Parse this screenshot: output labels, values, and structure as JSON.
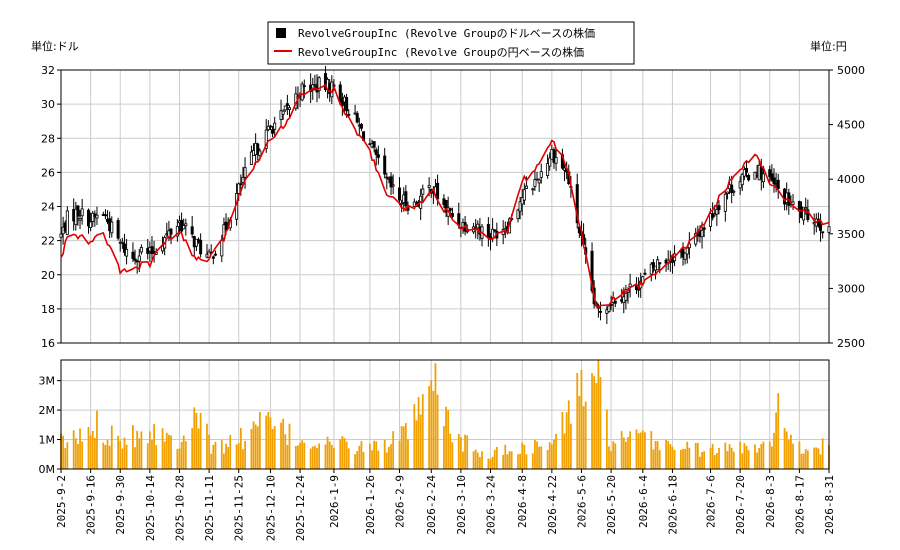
{
  "units": {
    "left": "単位:ドル",
    "right": "単位:円"
  },
  "legend": [
    {
      "label": "RevolveGroupInc (Revolve Groupのドルベースの株価",
      "color": "#000000"
    },
    {
      "label": "RevolveGroupInc (Revolve Groupの円ベースの株価",
      "color": "#e00000"
    }
  ],
  "chart_data": [
    {
      "type": "candlestick",
      "title": "",
      "xlabel": "",
      "ylabel_left": "単位:ドル",
      "ylabel_right": "単位:円",
      "ylim_left": [
        16,
        32
      ],
      "ylim_right": [
        2500,
        5000
      ],
      "yticks_left": [
        16,
        18,
        20,
        22,
        24,
        26,
        28,
        30,
        32
      ],
      "yticks_right": [
        2500,
        3000,
        3500,
        4000,
        4500,
        5000
      ],
      "grid": true,
      "legend_position": "top-center",
      "series": [
        {
          "name": "RevolveGroupInc (Revolve Groupのドルベースの株価",
          "anchors": [
            [
              "2025-09-02",
              22.3
            ],
            [
              "2025-09-05",
              23.3
            ],
            [
              "2025-09-10",
              23.7
            ],
            [
              "2025-09-16",
              23.2
            ],
            [
              "2025-09-22",
              23.6
            ],
            [
              "2025-09-30",
              21.8
            ],
            [
              "2025-10-06",
              21.0
            ],
            [
              "2025-10-10",
              21.4
            ],
            [
              "2025-10-14",
              21.2
            ],
            [
              "2025-10-20",
              22.0
            ],
            [
              "2025-10-28",
              23.1
            ],
            [
              "2025-11-04",
              22.0
            ],
            [
              "2025-11-11",
              20.9
            ],
            [
              "2025-11-18",
              22.5
            ],
            [
              "2025-11-25",
              25.0
            ],
            [
              "2025-12-02",
              27.1
            ],
            [
              "2025-12-10",
              28.6
            ],
            [
              "2025-12-17",
              29.5
            ],
            [
              "2025-12-24",
              30.8
            ],
            [
              "2026-01-02",
              31.1
            ],
            [
              "2026-01-09",
              31.0
            ],
            [
              "2026-01-16",
              29.7
            ],
            [
              "2026-01-26",
              27.6
            ],
            [
              "2026-02-02",
              25.6
            ],
            [
              "2026-02-09",
              24.4
            ],
            [
              "2026-02-16",
              24.1
            ],
            [
              "2026-02-24",
              25.2
            ],
            [
              "2026-03-03",
              23.8
            ],
            [
              "2026-03-10",
              23.0
            ],
            [
              "2026-03-17",
              22.9
            ],
            [
              "2026-03-24",
              22.3
            ],
            [
              "2026-04-01",
              23.0
            ],
            [
              "2026-04-08",
              24.6
            ],
            [
              "2026-04-15",
              25.6
            ],
            [
              "2026-04-22",
              27.2
            ],
            [
              "2026-04-29",
              26.0
            ],
            [
              "2026-05-06",
              22.0
            ],
            [
              "2026-05-13",
              17.8
            ],
            [
              "2026-05-20",
              18.5
            ],
            [
              "2026-05-27",
              19.0
            ],
            [
              "2026-06-04",
              19.7
            ],
            [
              "2026-06-11",
              20.7
            ],
            [
              "2026-06-18",
              21.1
            ],
            [
              "2026-06-25",
              21.4
            ],
            [
              "2026-07-06",
              23.4
            ],
            [
              "2026-07-13",
              24.8
            ],
            [
              "2026-07-20",
              25.6
            ],
            [
              "2026-07-28",
              26.2
            ],
            [
              "2026-08-03",
              25.5
            ],
            [
              "2026-08-10",
              24.5
            ],
            [
              "2026-08-17",
              23.6
            ],
            [
              "2026-08-24",
              23.4
            ],
            [
              "2026-08-31",
              22.4
            ]
          ]
        },
        {
          "name": "RevolveGroupInc (Revolve Groupの円ベースの株価",
          "anchors": [
            [
              "2025-09-02",
              3260
            ],
            [
              "2025-09-05",
              3480
            ],
            [
              "2025-09-10",
              3480
            ],
            [
              "2025-09-16",
              3420
            ],
            [
              "2025-09-22",
              3510
            ],
            [
              "2025-09-30",
              3150
            ],
            [
              "2025-10-06",
              3180
            ],
            [
              "2025-10-10",
              3210
            ],
            [
              "2025-10-14",
              3230
            ],
            [
              "2025-10-20",
              3400
            ],
            [
              "2025-10-28",
              3520
            ],
            [
              "2025-11-04",
              3280
            ],
            [
              "2025-11-11",
              3260
            ],
            [
              "2025-11-18",
              3450
            ],
            [
              "2025-11-25",
              3860
            ],
            [
              "2025-12-02",
              4120
            ],
            [
              "2025-12-10",
              4380
            ],
            [
              "2025-12-17",
              4510
            ],
            [
              "2025-12-24",
              4760
            ],
            [
              "2026-01-02",
              4860
            ],
            [
              "2026-01-09",
              4820
            ],
            [
              "2026-01-16",
              4550
            ],
            [
              "2026-01-26",
              4250
            ],
            [
              "2026-02-02",
              3890
            ],
            [
              "2026-02-09",
              3760
            ],
            [
              "2026-02-16",
              3720
            ],
            [
              "2026-02-24",
              3910
            ],
            [
              "2026-03-03",
              3700
            ],
            [
              "2026-03-10",
              3560
            ],
            [
              "2026-03-17",
              3540
            ],
            [
              "2026-03-24",
              3470
            ],
            [
              "2026-04-01",
              3520
            ],
            [
              "2026-04-08",
              3980
            ],
            [
              "2026-04-15",
              4110
            ],
            [
              "2026-04-22",
              4350
            ],
            [
              "2026-04-29",
              4130
            ],
            [
              "2026-05-06",
              3500
            ],
            [
              "2026-05-13",
              2850
            ],
            [
              "2026-05-20",
              2880
            ],
            [
              "2026-05-27",
              2980
            ],
            [
              "2026-06-04",
              3040
            ],
            [
              "2026-06-11",
              3170
            ],
            [
              "2026-06-18",
              3280
            ],
            [
              "2026-06-25",
              3390
            ],
            [
              "2026-07-06",
              3690
            ],
            [
              "2026-07-13",
              3920
            ],
            [
              "2026-07-20",
              4090
            ],
            [
              "2026-07-28",
              4220
            ],
            [
              "2026-08-03",
              3960
            ],
            [
              "2026-08-10",
              3820
            ],
            [
              "2026-08-17",
              3730
            ],
            [
              "2026-08-24",
              3640
            ],
            [
              "2026-08-31",
              3580
            ]
          ]
        }
      ]
    },
    {
      "type": "bar",
      "title": "",
      "ylim": [
        0,
        3700000
      ],
      "yticks": [
        0,
        1000000,
        2000000,
        3000000
      ],
      "ytick_labels": [
        "0M",
        "1M",
        "2M",
        "3M"
      ],
      "xlim": [
        "2025-09-02",
        "2026-08-31"
      ],
      "xticks": [
        "2025-9-2",
        "2025-9-16",
        "2025-9-30",
        "2025-10-14",
        "2025-10-28",
        "2025-11-11",
        "2025-11-25",
        "2025-12-10",
        "2025-12-24",
        "2026-1-9",
        "2026-1-26",
        "2026-2-9",
        "2026-2-24",
        "2026-3-10",
        "2026-3-24",
        "2026-4-8",
        "2026-4-22",
        "2026-5-6",
        "2026-5-20",
        "2026-6-4",
        "2026-6-18",
        "2026-7-6",
        "2026-7-20",
        "2026-8-3",
        "2026-8-17",
        "2026-8-31"
      ],
      "bar_color": "#f0a000",
      "grid": true,
      "volume_anchors": [
        [
          "2025-09-02",
          1000000
        ],
        [
          "2025-09-12",
          1200000
        ],
        [
          "2025-09-18",
          1650000
        ],
        [
          "2025-10-01",
          1200000
        ],
        [
          "2025-10-15",
          1500000
        ],
        [
          "2025-10-27",
          1000000
        ],
        [
          "2025-11-05",
          2350000
        ],
        [
          "2025-11-12",
          800000
        ],
        [
          "2025-11-25",
          1100000
        ],
        [
          "2025-12-08",
          1800000
        ],
        [
          "2025-12-22",
          1100000
        ],
        [
          "2026-01-09",
          950000
        ],
        [
          "2026-01-26",
          800000
        ],
        [
          "2026-02-09",
          1100000
        ],
        [
          "2026-02-23",
          2500000
        ],
        [
          "2026-02-27",
          3200000
        ],
        [
          "2026-03-05",
          1400000
        ],
        [
          "2026-03-20",
          500000
        ],
        [
          "2026-04-06",
          800000
        ],
        [
          "2026-04-22",
          900000
        ],
        [
          "2026-05-05",
          2900000
        ],
        [
          "2026-05-12",
          3750000
        ],
        [
          "2026-05-20",
          1000000
        ],
        [
          "2026-06-04",
          1150000
        ],
        [
          "2026-06-18",
          900000
        ],
        [
          "2026-07-06",
          700000
        ],
        [
          "2026-07-20",
          800000
        ],
        [
          "2026-08-03",
          1100000
        ],
        [
          "2026-08-07",
          2200000
        ],
        [
          "2026-08-17",
          800000
        ],
        [
          "2026-08-31",
          900000
        ]
      ]
    }
  ]
}
